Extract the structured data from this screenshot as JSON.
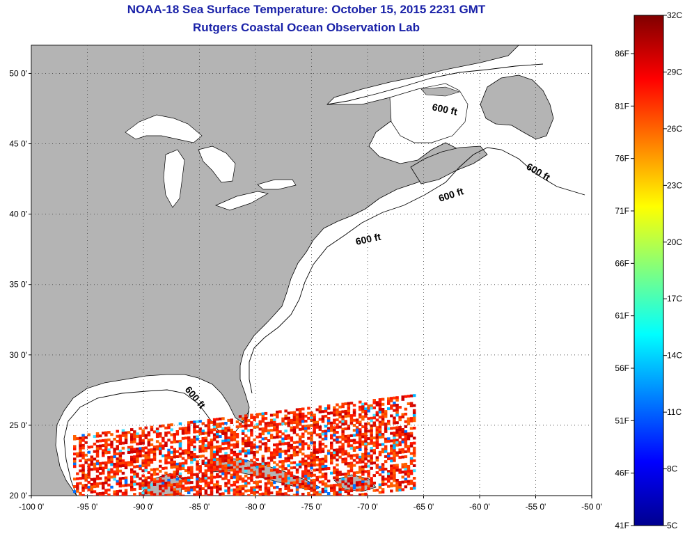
{
  "header": {
    "title": "NOAA-18 Sea Surface Temperature:  October 15, 2015 2231 GMT",
    "subtitle": "Rutgers Coastal Ocean Observation Lab"
  },
  "map": {
    "lon_range": [
      -100,
      -50
    ],
    "lat_range": [
      20,
      52
    ],
    "x_ticks": [
      "-100 0'",
      "-95 0'",
      "-90 0'",
      "-85 0'",
      "-80 0'",
      "-75 0'",
      "-70 0'",
      "-65 0'",
      "-60 0'",
      "-55 0'",
      "-50 0'"
    ],
    "y_ticks": [
      "20 0'",
      "25 0'",
      "30 0'",
      "35 0'",
      "40 0'",
      "45 0'",
      "50 0'"
    ],
    "grid": "dotted",
    "land_color": "#b4b4b4",
    "contour_labels": [
      "600 ft",
      "600 ft",
      "600 ft",
      "600 ft",
      "600 ft"
    ]
  },
  "colorbar": {
    "celsius_labels": [
      "32C",
      "29C",
      "26C",
      "23C",
      "20C",
      "17C",
      "14C",
      "11C",
      "8C",
      "5C"
    ],
    "fahrenheit_labels": [
      "86F",
      "81F",
      "76F",
      "71F",
      "66F",
      "61F",
      "56F",
      "51F",
      "46F",
      "41F"
    ],
    "range_c": [
      5,
      32
    ]
  }
}
